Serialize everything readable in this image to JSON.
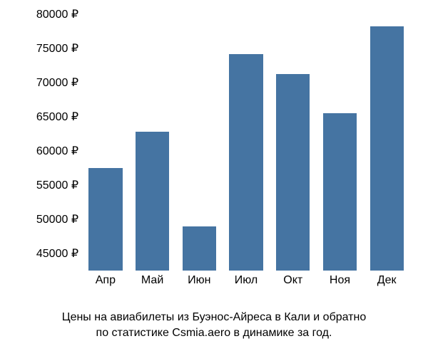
{
  "chart": {
    "type": "bar",
    "ylim": [
      42500,
      80000
    ],
    "yticks": [
      45000,
      50000,
      55000,
      60000,
      65000,
      70000,
      75000,
      80000
    ],
    "ytick_labels": [
      "45000 ₽",
      "50000 ₽",
      "55000 ₽",
      "60000 ₽",
      "65000 ₽",
      "70000 ₽",
      "75000 ₽",
      "80000 ₽"
    ],
    "categories": [
      "Апр",
      "Май",
      "Июн",
      "Июл",
      "Окт",
      "Ноя",
      "Дек"
    ],
    "values": [
      57500,
      62800,
      49000,
      74200,
      71200,
      65500,
      78200
    ],
    "bar_color": "#4574a2",
    "background_color": "#ffffff",
    "text_color": "#000000",
    "bar_width": 0.72,
    "tick_fontsize": 16,
    "caption_fontsize": 16
  },
  "caption": {
    "line1": "Цены на авиабилеты из Буэнос-Айреса в Кали и обратно",
    "line2": "по статистике Csmia.aero в динамике за год."
  }
}
